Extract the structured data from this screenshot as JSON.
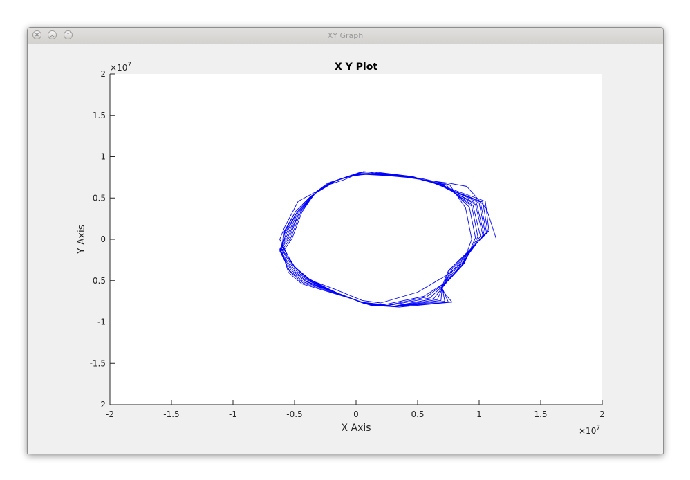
{
  "window": {
    "title": "XY Graph",
    "buttons": {
      "close_icon": "close-icon",
      "minimize_icon": "minimize-icon",
      "maximize_icon": "maximize-icon"
    }
  },
  "chart_data": {
    "type": "line",
    "title": "X Y Plot",
    "xlabel": "X Axis",
    "ylabel": "Y Axis",
    "xlim": [
      -20000000,
      20000000
    ],
    "ylim": [
      -20000000,
      20000000
    ],
    "x_multiplier_label": "×10",
    "x_multiplier_exp": "7",
    "y_multiplier_label": "×10",
    "y_multiplier_exp": "7",
    "xticks": [
      -2,
      -1.5,
      -1,
      -0.5,
      0,
      0.5,
      1,
      1.5,
      2
    ],
    "yticks": [
      -2,
      -1.5,
      -1,
      -0.5,
      0,
      0.5,
      1,
      1.5,
      2
    ],
    "xtick_labels": [
      "-2",
      "-1.5",
      "-1",
      "-0.5",
      "0",
      "0.5",
      "1",
      "1.5",
      "2"
    ],
    "ytick_labels": [
      "-2",
      "-1.5",
      "-1",
      "-0.5",
      "0",
      "0.5",
      "1",
      "1.5",
      "2"
    ],
    "grid": false,
    "line_color": "#0000ff",
    "series": [
      {
        "x": [
          11400000,
          10600000,
          9000000,
          7500000,
          5000000,
          2800000,
          600000,
          -1000000,
          -2200000,
          -4700000,
          -5800000,
          -6200000,
          -5200000,
          -3800000,
          -1800000,
          500000,
          2000000,
          5000000,
          7300000,
          8700000,
          9400000,
          8900000,
          7600000,
          5200000,
          2900000,
          300000,
          -1600000,
          -3700000,
          -4900000,
          -5800000,
          -6000000,
          -5100000,
          -3800000,
          -1700000,
          400000,
          2300000,
          5500000,
          7500000,
          8800000,
          9700000,
          9200000,
          7300000,
          4900000,
          2700000,
          200000,
          -1800000,
          -3600000,
          -4900000,
          -5900000,
          -6000000,
          -5000000,
          -3800000,
          -1500000,
          600000,
          2500000,
          5700000,
          7300000,
          8700000,
          9900000,
          9400000,
          7100000,
          4800000,
          2600000,
          100000,
          -1900000,
          -3500000,
          -4800000,
          -5800000,
          -6100000,
          -5000000,
          -3800000,
          -1400000,
          700000,
          2700000,
          6000000,
          7200000,
          8600000,
          10100000,
          9500000,
          6900000,
          4800000,
          2400000,
          0,
          -2000000,
          -3500000,
          -4800000,
          -5700000,
          -6100000,
          -5100000,
          -3900000,
          -1300000,
          900000,
          3000000,
          6300000,
          7200000,
          8400000,
          10300000,
          9700000,
          6800000,
          4800000,
          2200000,
          -200000,
          -2000000,
          -3400000,
          -4700000,
          -5600000,
          -6200000,
          -5200000,
          -4000000,
          -1200000,
          1000000,
          3100000,
          6600000,
          7100000,
          8200000,
          10400000,
          9800000,
          6600000,
          4800000,
          2100000,
          -300000,
          -2100000,
          -3400000,
          -4600000,
          -5500000,
          -6200000,
          -5300000,
          -4100000,
          -1100000,
          1100000,
          3200000,
          6900000,
          7000000,
          8000000,
          10500000,
          10000000,
          6500000,
          4700000,
          2000000,
          -400000,
          -2100000,
          -3300000,
          -4600000,
          -5400000,
          -6200000,
          -5400000,
          -4200000,
          -1000000,
          1200000,
          3300000,
          7200000,
          7000000,
          7800000,
          10600000,
          10100000,
          6400000,
          4700000,
          1900000,
          -500000,
          -2200000,
          -3300000,
          -4500000,
          -5300000,
          -6100000,
          -5400000,
          -4300000,
          -900000,
          1300000,
          3400000,
          7500000,
          7000000,
          7600000,
          10700000,
          10300000,
          6300000,
          4600000,
          1800000,
          -500000,
          -2300000,
          -3300000,
          -4400000,
          -5200000,
          -6000000,
          -5500000,
          -4400000,
          -800000,
          1400000,
          3500000,
          7800000,
          6900000,
          7500000,
          10800000,
          10500000,
          6200000,
          4500000,
          1800000
        ],
        "y": [
          0,
          3700000,
          6400000,
          6800000,
          7300000,
          7800000,
          8200000,
          7200000,
          6600000,
          4600000,
          1500000,
          0,
          -3000000,
          -4900000,
          -6000000,
          -7400000,
          -7700000,
          -6400000,
          -4400000,
          -2800000,
          0,
          3800000,
          6600000,
          7400000,
          7700000,
          8100000,
          7100000,
          5200000,
          3400000,
          900000,
          -700000,
          -3200000,
          -4800000,
          -6400000,
          -7600000,
          -7900000,
          -6900000,
          -5000000,
          -2900000,
          200000,
          3900000,
          6600000,
          7400000,
          7700000,
          8000000,
          7000000,
          5300000,
          3400000,
          800000,
          -900000,
          -3300000,
          -4900000,
          -6500000,
          -7700000,
          -8000000,
          -7000000,
          -5200000,
          -3000000,
          300000,
          4000000,
          6600000,
          7400000,
          7700000,
          7900000,
          7000000,
          5400000,
          3300000,
          700000,
          -1000000,
          -3400000,
          -5000000,
          -6600000,
          -7800000,
          -8000000,
          -7100000,
          -5400000,
          -3100000,
          400000,
          4100000,
          6700000,
          7400000,
          7800000,
          7900000,
          6900000,
          5400000,
          3300000,
          600000,
          -1100000,
          -3500000,
          -5000000,
          -6700000,
          -7800000,
          -8100000,
          -7200000,
          -5500000,
          -3300000,
          500000,
          4200000,
          6700000,
          7400000,
          7900000,
          7800000,
          6900000,
          5500000,
          3300000,
          500000,
          -1200000,
          -3600000,
          -5100000,
          -6700000,
          -7900000,
          -8100000,
          -7300000,
          -5600000,
          -3400000,
          600000,
          4300000,
          6700000,
          7400000,
          7900000,
          7800000,
          6900000,
          5500000,
          3300000,
          400000,
          -1300000,
          -3700000,
          -5100000,
          -6800000,
          -7900000,
          -8100000,
          -7400000,
          -5700000,
          -3500000,
          700000,
          4400000,
          6800000,
          7500000,
          8000000,
          7700000,
          6900000,
          5600000,
          3300000,
          300000,
          -1400000,
          -3800000,
          -5200000,
          -6800000,
          -8000000,
          -8100000,
          -7500000,
          -5800000,
          -3600000,
          800000,
          4500000,
          6800000,
          7500000,
          8000000,
          7700000,
          6800000,
          5600000,
          3300000,
          200000,
          -1500000,
          -3900000,
          -5300000,
          -6900000,
          -8000000,
          -8100000,
          -7600000,
          -5900000,
          -3700000,
          900000,
          4500000,
          6800000,
          7600000,
          8100000,
          7600000,
          6800000,
          5700000,
          3300000,
          100000,
          -1600000,
          -4000000,
          -5400000,
          -7000000,
          -8000000,
          -8200000,
          -7600000,
          -6000000,
          -3800000,
          1000000,
          4600000,
          6900000,
          7600000,
          8100000
        ]
      }
    ]
  }
}
